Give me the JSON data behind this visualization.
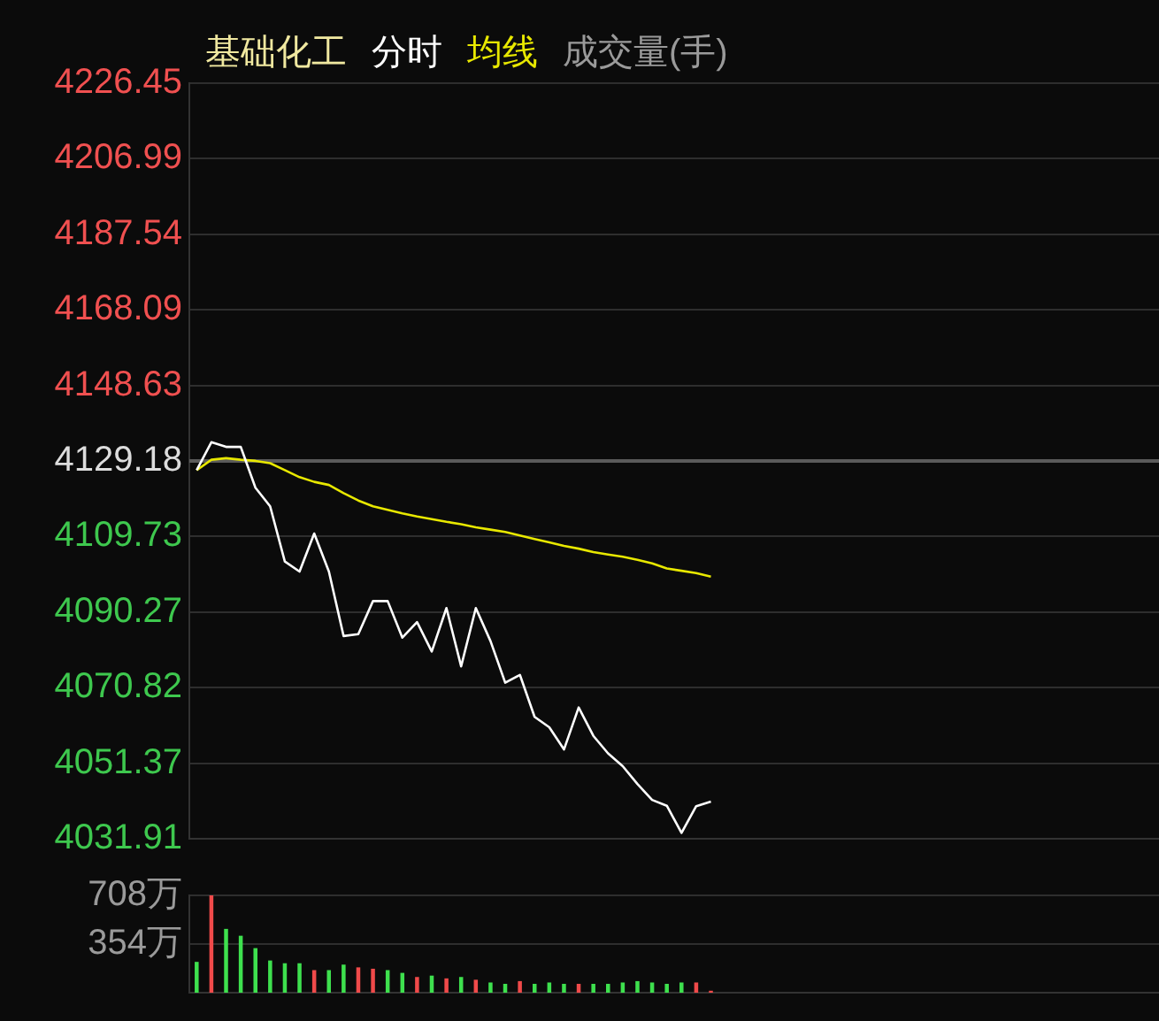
{
  "chart_data": [
    {
      "type": "line",
      "title": "基础化工",
      "categories": [
        null,
        null,
        null,
        null,
        null,
        null,
        null,
        null,
        null,
        null,
        null,
        null,
        null,
        null,
        null,
        null,
        null,
        null,
        null,
        null,
        null,
        null,
        null,
        null,
        null,
        null,
        null,
        null,
        null,
        null,
        null,
        null,
        null,
        null,
        null,
        null,
        null,
        null,
        null,
        null,
        null,
        null,
        null,
        null,
        null,
        null,
        null,
        null,
        null,
        null,
        null,
        null,
        null,
        null,
        null,
        null,
        null,
        null,
        null,
        null,
        null,
        null,
        null,
        null,
        null,
        null
      ],
      "series": [
        {
          "name": "分时",
          "color": "#ffffff",
          "values": [
            4126.8,
            4134.0,
            4132.8,
            4132.8,
            4122.3,
            4117.5,
            4103.3,
            4100.7,
            4110.5,
            4100.7,
            4084.1,
            4084.6,
            4093.1,
            4093.1,
            4083.7,
            4087.7,
            4080.1,
            4091.3,
            4076.3,
            4091.3,
            4082.8,
            4072.1,
            4074.1,
            4063.3,
            4060.6,
            4054.9,
            4065.7,
            4058.4,
            4053.9,
            4050.6,
            4046.0,
            4041.9,
            4040.4,
            4033.4,
            4040.3,
            4041.5,
            null,
            null,
            null,
            null,
            null,
            null,
            null,
            null,
            null,
            null,
            null,
            null,
            null,
            null,
            null,
            null,
            null,
            null,
            null,
            null,
            null,
            null,
            null,
            null,
            null,
            null,
            null,
            null,
            null,
            null
          ]
        },
        {
          "name": "均线",
          "color": "#e8e800",
          "values": [
            4126.8,
            4129.5,
            4129.9,
            4129.5,
            4129.2,
            4128.6,
            4126.8,
            4125.0,
            4123.8,
            4123.0,
            4120.9,
            4119.0,
            4117.5,
            4116.6,
            4115.7,
            4114.9,
            4114.2,
            4113.5,
            4112.9,
            4112.1,
            4111.5,
            4110.9,
            4110.0,
            4109.1,
            4108.2,
            4107.3,
            4106.6,
            4105.7,
            4105.1,
            4104.5,
            4103.7,
            4102.8,
            4101.5,
            4100.9,
            4100.3,
            4099.4,
            null,
            null,
            null,
            null,
            null,
            null,
            null,
            null,
            null,
            null,
            null,
            null,
            null,
            null,
            null,
            null,
            null,
            null,
            null,
            null,
            null,
            null,
            null,
            null,
            null,
            null,
            null,
            null,
            null,
            null
          ]
        }
      ],
      "ylim": [
        4031.91,
        4226.45
      ],
      "yticks": [
        4031.91,
        4051.37,
        4070.82,
        4090.27,
        4109.73,
        4129.18,
        4148.63,
        4168.09,
        4187.54,
        4206.99,
        4226.45
      ],
      "ref_lines": [
        {
          "axis": "y",
          "value": 4129.18,
          "color": "#5a5a5a"
        }
      ],
      "annotations": [
        "成交量(手)"
      ],
      "grid": "y",
      "legend": "top left",
      "marker": "none"
    },
    {
      "type": "bar",
      "categories": [
        null,
        null,
        null,
        null,
        null,
        null,
        null,
        null,
        null,
        null,
        null,
        null,
        null,
        null,
        null,
        null,
        null,
        null,
        null,
        null,
        null,
        null,
        null,
        null,
        null,
        null,
        null,
        null,
        null,
        null,
        null,
        null,
        null,
        null,
        null,
        null,
        null,
        null,
        null,
        null,
        null,
        null,
        null,
        null,
        null,
        null,
        null,
        null,
        null,
        null,
        null,
        null,
        null,
        null,
        null,
        null,
        null,
        null,
        null,
        null,
        null,
        null,
        null,
        null,
        null,
        null
      ],
      "values": [
        220,
        708,
        460,
        410,
        320,
        230,
        210,
        210,
        160,
        160,
        200,
        180,
        170,
        160,
        140,
        110,
        120,
        100,
        110,
        90,
        70,
        60,
        80,
        60,
        70,
        60,
        60,
        60,
        60,
        70,
        80,
        70,
        60,
        70,
        70,
        10,
        null,
        null,
        null,
        null,
        null,
        null,
        null,
        null,
        null,
        null,
        null,
        null,
        null,
        null,
        null,
        null,
        null,
        null,
        null,
        null,
        null,
        null,
        null,
        null,
        null,
        null,
        null,
        null,
        null,
        null
      ],
      "colors": [
        "#3ee04e",
        "#f04a4a",
        "#3ee04e",
        "#3ee04e",
        "#3ee04e",
        "#3ee04e",
        "#3ee04e",
        "#3ee04e",
        "#f04a4a",
        "#3ee04e",
        "#3ee04e",
        "#f04a4a",
        "#f04a4a",
        "#3ee04e",
        "#3ee04e",
        "#f04a4a",
        "#3ee04e",
        "#f04a4a",
        "#3ee04e",
        "#f04a4a",
        "#3ee04e",
        "#3ee04e",
        "#f04a4a",
        "#3ee04e",
        "#3ee04e",
        "#3ee04e",
        "#f04a4a",
        "#3ee04e",
        "#3ee04e",
        "#3ee04e",
        "#3ee04e",
        "#3ee04e",
        "#3ee04e",
        "#3ee04e",
        "#f04a4a",
        "#f04a4a",
        null,
        null,
        null,
        null,
        null,
        null,
        null,
        null,
        null,
        null,
        null,
        null,
        null,
        null,
        null,
        null,
        null,
        null,
        null,
        null,
        null,
        null,
        null,
        null,
        null,
        null,
        null,
        null,
        null,
        null
      ],
      "ylim": [
        0,
        708
      ],
      "yticks": [
        {
          "value": 354,
          "label": "354万"
        },
        {
          "value": 708,
          "label": "708万"
        }
      ],
      "grid": "y"
    }
  ]
}
